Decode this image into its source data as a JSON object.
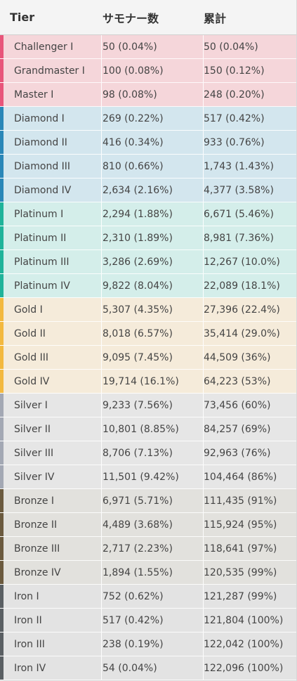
{
  "header": {
    "tier": "Tier",
    "count": "サモナー数",
    "cumulative": "累計"
  },
  "colors": {
    "challenger": {
      "stripe": "#e8557a",
      "bg": "#f5d6da"
    },
    "diamond": {
      "stripe": "#2a87b8",
      "bg": "#d3e6ee"
    },
    "platinum": {
      "stripe": "#1fb39a",
      "bg": "#d4eeea"
    },
    "gold": {
      "stripe": "#f3b93f",
      "bg": "#f5ebda"
    },
    "silver": {
      "stripe": "#a3a8b4",
      "bg": "#e6e6e6"
    },
    "bronze": {
      "stripe": "#6b5a3e",
      "bg": "#e2e1dd"
    },
    "iron": {
      "stripe": "#5a5f63",
      "bg": "#e3e3e3"
    }
  },
  "rows": [
    {
      "tier": "Challenger I",
      "count": "50 (0.04%)",
      "cumulative": "50 (0.04%)",
      "group": "challenger"
    },
    {
      "tier": "Grandmaster I",
      "count": "100 (0.08%)",
      "cumulative": "150 (0.12%)",
      "group": "challenger"
    },
    {
      "tier": "Master I",
      "count": "98 (0.08%)",
      "cumulative": "248 (0.20%)",
      "group": "challenger"
    },
    {
      "tier": "Diamond I",
      "count": "269 (0.22%)",
      "cumulative": "517 (0.42%)",
      "group": "diamond"
    },
    {
      "tier": "Diamond II",
      "count": "416 (0.34%)",
      "cumulative": "933 (0.76%)",
      "group": "diamond"
    },
    {
      "tier": "Diamond III",
      "count": "810 (0.66%)",
      "cumulative": "1,743 (1.43%)",
      "group": "diamond"
    },
    {
      "tier": "Diamond IV",
      "count": "2,634 (2.16%)",
      "cumulative": "4,377 (3.58%)",
      "group": "diamond"
    },
    {
      "tier": "Platinum I",
      "count": "2,294 (1.88%)",
      "cumulative": "6,671 (5.46%)",
      "group": "platinum"
    },
    {
      "tier": "Platinum II",
      "count": "2,310 (1.89%)",
      "cumulative": "8,981 (7.36%)",
      "group": "platinum"
    },
    {
      "tier": "Platinum III",
      "count": "3,286 (2.69%)",
      "cumulative": "12,267 (10.0%)",
      "group": "platinum"
    },
    {
      "tier": "Platinum IV",
      "count": "9,822 (8.04%)",
      "cumulative": "22,089 (18.1%)",
      "group": "platinum"
    },
    {
      "tier": "Gold I",
      "count": "5,307 (4.35%)",
      "cumulative": "27,396 (22.4%)",
      "group": "gold"
    },
    {
      "tier": "Gold II",
      "count": "8,018 (6.57%)",
      "cumulative": "35,414 (29.0%)",
      "group": "gold"
    },
    {
      "tier": "Gold III",
      "count": "9,095 (7.45%)",
      "cumulative": "44,509 (36%)",
      "group": "gold"
    },
    {
      "tier": "Gold IV",
      "count": "19,714 (16.1%)",
      "cumulative": "64,223 (53%)",
      "group": "gold"
    },
    {
      "tier": "Silver I",
      "count": "9,233 (7.56%)",
      "cumulative": "73,456 (60%)",
      "group": "silver"
    },
    {
      "tier": "Silver II",
      "count": "10,801 (8.85%)",
      "cumulative": "84,257 (69%)",
      "group": "silver"
    },
    {
      "tier": "Silver III",
      "count": "8,706 (7.13%)",
      "cumulative": "92,963 (76%)",
      "group": "silver"
    },
    {
      "tier": "Silver IV",
      "count": "11,501 (9.42%)",
      "cumulative": "104,464 (86%)",
      "group": "silver"
    },
    {
      "tier": "Bronze I",
      "count": "6,971 (5.71%)",
      "cumulative": "111,435 (91%)",
      "group": "bronze"
    },
    {
      "tier": "Bronze II",
      "count": "4,489 (3.68%)",
      "cumulative": "115,924 (95%)",
      "group": "bronze"
    },
    {
      "tier": "Bronze III",
      "count": "2,717 (2.23%)",
      "cumulative": "118,641 (97%)",
      "group": "bronze"
    },
    {
      "tier": "Bronze IV",
      "count": "1,894 (1.55%)",
      "cumulative": "120,535 (99%)",
      "group": "bronze"
    },
    {
      "tier": "Iron I",
      "count": "752 (0.62%)",
      "cumulative": "121,287 (99%)",
      "group": "iron"
    },
    {
      "tier": "Iron II",
      "count": "517 (0.42%)",
      "cumulative": "121,804 (100%)",
      "group": "iron"
    },
    {
      "tier": "Iron III",
      "count": "238 (0.19%)",
      "cumulative": "122,042 (100%)",
      "group": "iron"
    },
    {
      "tier": "Iron IV",
      "count": "54 (0.04%)",
      "cumulative": "122,096 (100%)",
      "group": "iron"
    }
  ]
}
